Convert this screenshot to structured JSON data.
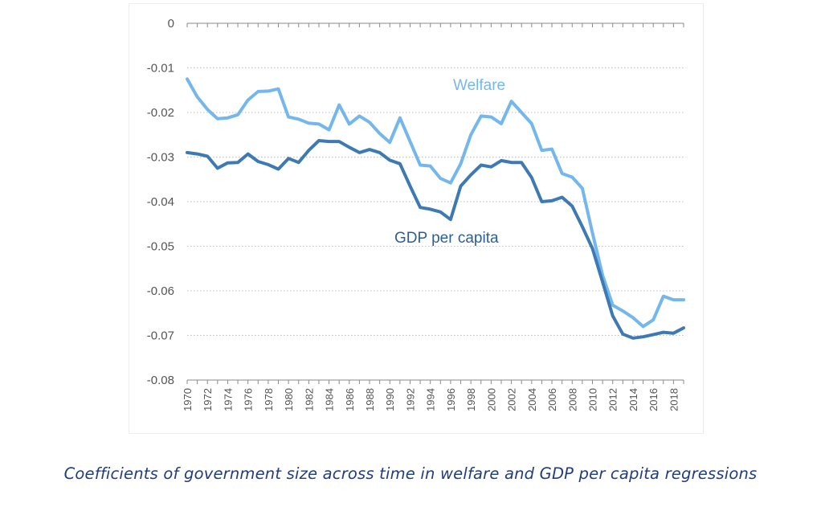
{
  "chart_data": {
    "type": "line",
    "x": [
      1970,
      1971,
      1972,
      1973,
      1974,
      1975,
      1976,
      1977,
      1978,
      1979,
      1980,
      1981,
      1982,
      1983,
      1984,
      1985,
      1986,
      1987,
      1988,
      1989,
      1990,
      1991,
      1992,
      1993,
      1994,
      1995,
      1996,
      1997,
      1998,
      1999,
      2000,
      2001,
      2002,
      2003,
      2004,
      2005,
      2006,
      2007,
      2008,
      2009,
      2010,
      2011,
      2012,
      2013,
      2014,
      2015,
      2016,
      2017,
      2018,
      2019
    ],
    "x_tick_labels": [
      "1970",
      "1972",
      "1974",
      "1976",
      "1978",
      "1980",
      "1982",
      "1984",
      "1986",
      "1988",
      "1990",
      "1992",
      "1994",
      "1996",
      "1998",
      "2000",
      "2002",
      "2004",
      "2006",
      "2008",
      "2010",
      "2012",
      "2014",
      "2016",
      "2018"
    ],
    "y_tick_labels": [
      "0",
      "-0.01",
      "-0.02",
      "-0.03",
      "-0.04",
      "-0.05",
      "-0.06",
      "-0.07",
      "-0.08"
    ],
    "ylim": [
      -0.08,
      0
    ],
    "xlim": [
      1970,
      2019
    ],
    "grid": "horizontal dotted",
    "series": [
      {
        "name": "Welfare",
        "color": "#74b7ec",
        "values": [
          -0.0125,
          -0.0165,
          -0.0193,
          -0.0214,
          -0.0212,
          -0.0205,
          -0.0172,
          -0.0153,
          -0.0152,
          -0.0147,
          -0.021,
          -0.0215,
          -0.0224,
          -0.0226,
          -0.0239,
          -0.0183,
          -0.0226,
          -0.0208,
          -0.0222,
          -0.0247,
          -0.0267,
          -0.0212,
          -0.0265,
          -0.0318,
          -0.032,
          -0.0348,
          -0.0358,
          -0.0315,
          -0.025,
          -0.0208,
          -0.021,
          -0.0225,
          -0.0175,
          -0.02,
          -0.0225,
          -0.0285,
          -0.0282,
          -0.0337,
          -0.0345,
          -0.037,
          -0.047,
          -0.0565,
          -0.0632,
          -0.0645,
          -0.066,
          -0.068,
          -0.0665,
          -0.0612,
          -0.062,
          -0.062
        ]
      },
      {
        "name": "GDP per capita",
        "color": "#3d7ab4",
        "values": [
          -0.029,
          -0.0293,
          -0.0298,
          -0.0325,
          -0.0313,
          -0.0312,
          -0.0293,
          -0.031,
          -0.0317,
          -0.0327,
          -0.0303,
          -0.0312,
          -0.0285,
          -0.0263,
          -0.0265,
          -0.0265,
          -0.0278,
          -0.029,
          -0.0283,
          -0.029,
          -0.0307,
          -0.0315,
          -0.0365,
          -0.0413,
          -0.0417,
          -0.0423,
          -0.044,
          -0.0365,
          -0.034,
          -0.0318,
          -0.0322,
          -0.0308,
          -0.0312,
          -0.0312,
          -0.0346,
          -0.04,
          -0.0398,
          -0.039,
          -0.041,
          -0.0456,
          -0.0505,
          -0.058,
          -0.0656,
          -0.0697,
          -0.0706,
          -0.0703,
          -0.0698,
          -0.0693,
          -0.0695,
          -0.0683
        ]
      }
    ],
    "annotations": [
      "Welfare",
      "GDP per capita"
    ]
  },
  "caption": "Coefficients of government size across time in welfare and GDP per capita regressions"
}
